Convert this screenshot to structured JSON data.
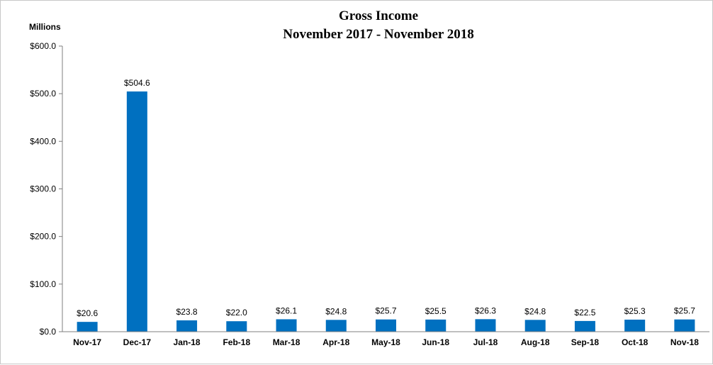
{
  "chart_data": {
    "type": "bar",
    "title": "Gross Income",
    "subtitle": "November 2017 - November 2018",
    "unit_label": "Millions",
    "categories": [
      "Nov-17",
      "Dec-17",
      "Jan-18",
      "Feb-18",
      "Mar-18",
      "Apr-18",
      "May-18",
      "Jun-18",
      "Jul-18",
      "Aug-18",
      "Sep-18",
      "Oct-18",
      "Nov-18"
    ],
    "values": [
      20.6,
      504.6,
      23.8,
      22.0,
      26.1,
      24.8,
      25.7,
      25.5,
      26.3,
      24.8,
      22.5,
      25.3,
      25.7
    ],
    "data_labels": [
      "$20.6",
      "$504.6",
      "$23.8",
      "$22.0",
      "$26.1",
      "$24.8",
      "$25.7",
      "$25.5",
      "$26.3",
      "$24.8",
      "$22.5",
      "$25.3",
      "$25.7"
    ],
    "ylim": [
      0,
      600
    ],
    "yticks": [
      0,
      100,
      200,
      300,
      400,
      500,
      600
    ],
    "ytick_labels": [
      "$0.0",
      "$100.0",
      "$200.0",
      "$300.0",
      "$400.0",
      "$500.0",
      "$600.0"
    ],
    "bar_color": "#0070c0",
    "grid": false,
    "legend": "none"
  }
}
